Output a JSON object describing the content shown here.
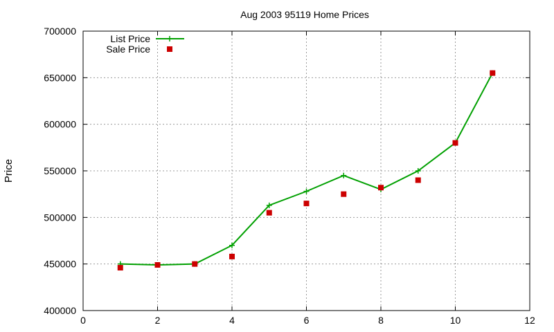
{
  "chart_data": {
    "type": "line",
    "title": "Aug 2003 95119 Home Prices",
    "xlabel": "",
    "ylabel": "Price",
    "xlim": [
      0,
      12
    ],
    "ylim": [
      400000,
      700000
    ],
    "xticks": [
      0,
      2,
      4,
      6,
      8,
      10,
      12
    ],
    "yticks": [
      400000,
      450000,
      500000,
      550000,
      600000,
      650000,
      700000
    ],
    "grid": true,
    "legend_position": "top-left",
    "series": [
      {
        "name": "List Price",
        "style": "line-with-plus-markers",
        "color": "#00a000",
        "x": [
          1,
          2,
          3,
          4,
          5,
          6,
          7,
          8,
          9,
          10,
          11
        ],
        "y": [
          450000,
          449000,
          450000,
          470000,
          513000,
          528000,
          545000,
          530000,
          550000,
          580000,
          655000
        ]
      },
      {
        "name": "Sale Price",
        "style": "square-markers",
        "color": "#cc0000",
        "x": [
          1,
          2,
          3,
          4,
          5,
          6,
          7,
          8,
          9,
          10,
          11
        ],
        "y": [
          446000,
          449000,
          450000,
          458000,
          505000,
          515000,
          525000,
          532000,
          540000,
          580000,
          655000
        ]
      }
    ]
  }
}
